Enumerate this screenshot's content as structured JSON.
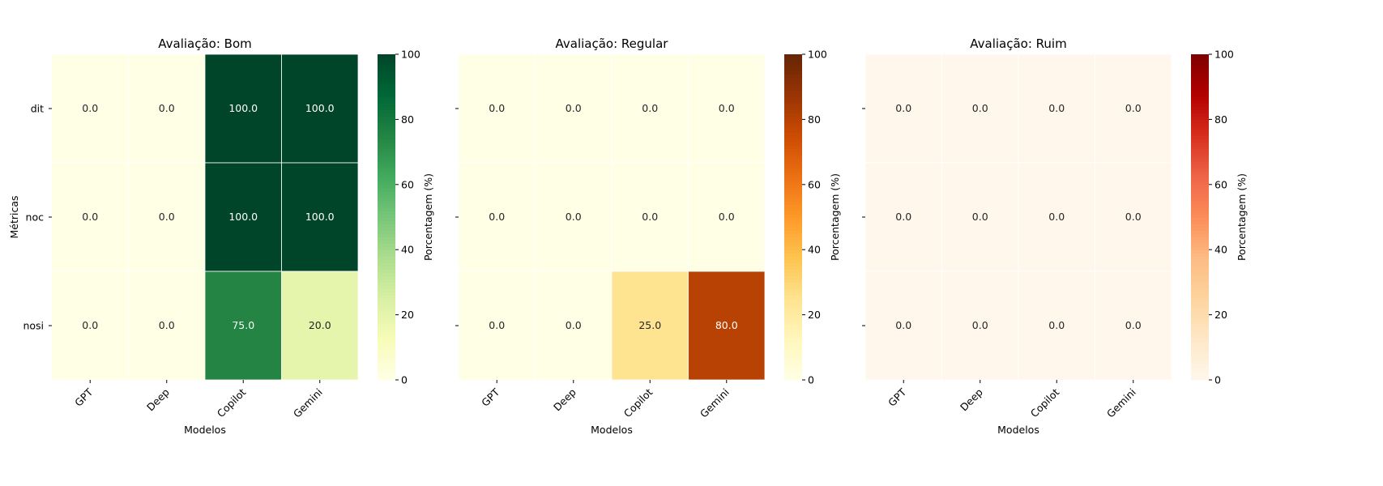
{
  "chart_data": [
    {
      "type": "heatmap",
      "title": "Avaliação: Bom",
      "xlabel": "Modelos",
      "ylabel": "Métricas",
      "x_categories": [
        "GPT",
        "Deep",
        "Copilot",
        "Gemini"
      ],
      "y_categories": [
        "dit",
        "noc",
        "nosi"
      ],
      "values": [
        [
          0.0,
          0.0,
          100.0,
          100.0
        ],
        [
          0.0,
          0.0,
          100.0,
          100.0
        ],
        [
          0.0,
          0.0,
          75.0,
          20.0
        ]
      ],
      "value_labels": [
        [
          "0.0",
          "0.0",
          "100.0",
          "100.0"
        ],
        [
          "0.0",
          "0.0",
          "100.0",
          "100.0"
        ],
        [
          "0.0",
          "0.0",
          "75.0",
          "20.0"
        ]
      ],
      "colormap": [
        "#ffffe5",
        "#f7fcb9",
        "#d9f0a3",
        "#addd8e",
        "#78c679",
        "#41ab5d",
        "#238443",
        "#006837",
        "#004529"
      ],
      "colorbar": {
        "label": "Porcentagem (%)",
        "range": [
          0,
          100
        ],
        "ticks": [
          "0",
          "20",
          "40",
          "60",
          "80",
          "100"
        ]
      }
    },
    {
      "type": "heatmap",
      "title": "Avaliação: Regular",
      "xlabel": "Modelos",
      "ylabel": "",
      "x_categories": [
        "GPT",
        "Deep",
        "Copilot",
        "Gemini"
      ],
      "y_categories": [
        "dit",
        "noc",
        "nosi"
      ],
      "values": [
        [
          0.0,
          0.0,
          0.0,
          0.0
        ],
        [
          0.0,
          0.0,
          0.0,
          0.0
        ],
        [
          0.0,
          0.0,
          25.0,
          80.0
        ]
      ],
      "value_labels": [
        [
          "0.0",
          "0.0",
          "0.0",
          "0.0"
        ],
        [
          "0.0",
          "0.0",
          "0.0",
          "0.0"
        ],
        [
          "0.0",
          "0.0",
          "25.0",
          "80.0"
        ]
      ],
      "colormap": [
        "#ffffe5",
        "#fff7bc",
        "#fee391",
        "#fec44f",
        "#fe9929",
        "#ec7014",
        "#cc4c02",
        "#993404",
        "#662506"
      ],
      "colorbar": {
        "label": "Porcentagem (%)",
        "range": [
          0,
          100
        ],
        "ticks": [
          "0",
          "20",
          "40",
          "60",
          "80",
          "100"
        ]
      }
    },
    {
      "type": "heatmap",
      "title": "Avaliação: Ruim",
      "xlabel": "Modelos",
      "ylabel": "",
      "x_categories": [
        "GPT",
        "Deep",
        "Copilot",
        "Gemini"
      ],
      "y_categories": [
        "dit",
        "noc",
        "nosi"
      ],
      "values": [
        [
          0.0,
          0.0,
          0.0,
          0.0
        ],
        [
          0.0,
          0.0,
          0.0,
          0.0
        ],
        [
          0.0,
          0.0,
          0.0,
          0.0
        ]
      ],
      "value_labels": [
        [
          "0.0",
          "0.0",
          "0.0",
          "0.0"
        ],
        [
          "0.0",
          "0.0",
          "0.0",
          "0.0"
        ],
        [
          "0.0",
          "0.0",
          "0.0",
          "0.0"
        ]
      ],
      "colormap": [
        "#fff7ec",
        "#fee8c8",
        "#fdd49e",
        "#fdbb84",
        "#fc8d59",
        "#ef6548",
        "#d7301f",
        "#b30000",
        "#7f0000"
      ],
      "colorbar": {
        "label": "Porcentagem (%)",
        "range": [
          0,
          100
        ],
        "ticks": [
          "0",
          "20",
          "40",
          "60",
          "80",
          "100"
        ]
      }
    }
  ]
}
